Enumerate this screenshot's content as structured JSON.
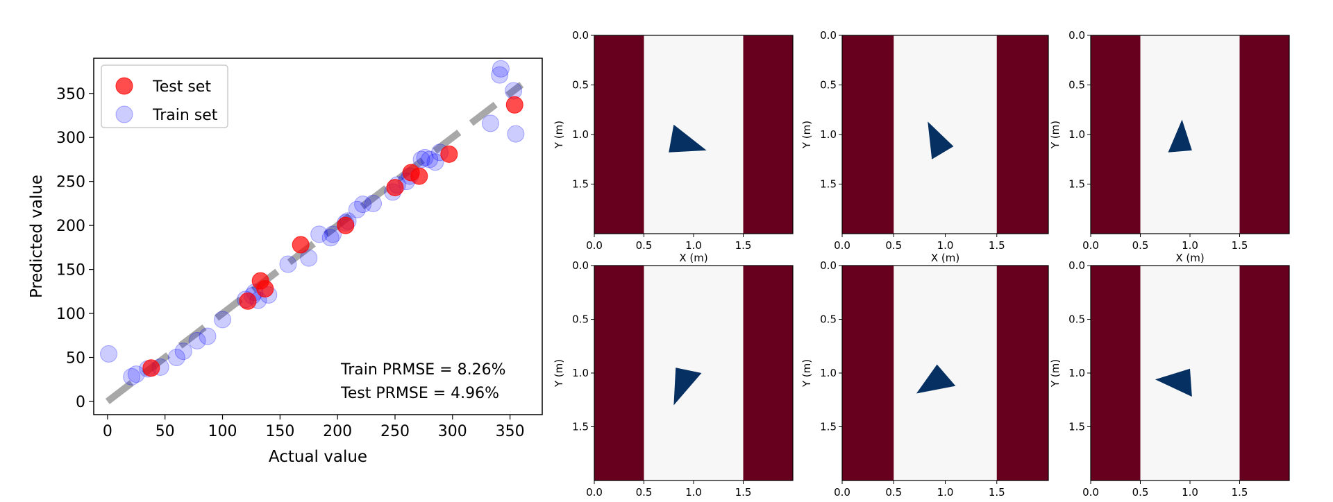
{
  "chart_data": [
    {
      "type": "scatter",
      "xlabel": "Actual value",
      "ylabel": "Predicted value",
      "xlim": [
        -12,
        378
      ],
      "ylim": [
        -15,
        390
      ],
      "xticks": [
        0,
        50,
        100,
        150,
        200,
        250,
        300,
        350
      ],
      "yticks": [
        0,
        50,
        100,
        150,
        200,
        250,
        300,
        350
      ],
      "legend_placement": "top-left",
      "grid": false,
      "reference_line": {
        "from": [
          0,
          0
        ],
        "to": [
          360,
          360
        ],
        "style": "dashed",
        "color": "#999999"
      },
      "annotations": [
        "Train PRMSE = 8.26%",
        "Test PRMSE = 4.96%"
      ],
      "series": [
        {
          "name": "Test set",
          "color": "#ff0000",
          "alpha": 0.7,
          "points": [
            [
              38,
              38
            ],
            [
              122,
              114
            ],
            [
              133,
              137
            ],
            [
              137,
              128
            ],
            [
              168,
              178
            ],
            [
              207,
              200
            ],
            [
              250,
              243
            ],
            [
              264,
              260
            ],
            [
              271,
              256
            ],
            [
              297,
              281
            ],
            [
              354,
              337
            ]
          ]
        },
        {
          "name": "Train set",
          "color": "#0000ff",
          "alpha": 0.2,
          "points": [
            [
              1,
              54
            ],
            [
              21,
              28
            ],
            [
              25,
              31
            ],
            [
              35,
              37
            ],
            [
              46,
              39
            ],
            [
              60,
              50
            ],
            [
              66,
              57
            ],
            [
              78,
              69
            ],
            [
              87,
              74
            ],
            [
              100,
              93
            ],
            [
              120,
              116
            ],
            [
              126,
              120
            ],
            [
              128,
              124
            ],
            [
              131,
              115
            ],
            [
              140,
              121
            ],
            [
              157,
              156
            ],
            [
              175,
              163
            ],
            [
              184,
              190
            ],
            [
              194,
              186
            ],
            [
              196,
              190
            ],
            [
              207,
              203
            ],
            [
              209,
              205
            ],
            [
              217,
              218
            ],
            [
              222,
              224
            ],
            [
              231,
              225
            ],
            [
              248,
              238
            ],
            [
              252,
              246
            ],
            [
              260,
              250
            ],
            [
              263,
              256
            ],
            [
              273,
              275
            ],
            [
              276,
              277
            ],
            [
              280,
              275
            ],
            [
              285,
              272
            ],
            [
              289,
              283
            ],
            [
              333,
              316
            ],
            [
              341,
              371
            ],
            [
              342,
              378
            ],
            [
              353,
              353
            ],
            [
              355,
              304
            ]
          ]
        }
      ]
    },
    {
      "type": "heatmap",
      "panels": 6,
      "xlabel": "X (m)",
      "ylabel": "Y (m)",
      "xlim": [
        0,
        2
      ],
      "ylim": [
        2,
        0
      ],
      "xticks": [
        "0.0",
        "0.5",
        "1.0",
        "1.5"
      ],
      "yticks": [
        "0.0",
        "0.5",
        "1.0",
        "1.5"
      ],
      "colors": {
        "wall": "#67001f",
        "free": "#f7f7f7",
        "object": "#053061"
      },
      "walls_x": [
        [
          0,
          0.5
        ],
        [
          1.5,
          2
        ]
      ],
      "triangles": [
        [
          [
            0.8,
            0.9
          ],
          [
            0.75,
            1.18
          ],
          [
            1.13,
            1.16
          ]
        ],
        [
          [
            0.83,
            0.87
          ],
          [
            0.87,
            1.25
          ],
          [
            1.08,
            1.12
          ]
        ],
        [
          [
            0.92,
            0.85
          ],
          [
            0.78,
            1.18
          ],
          [
            1.02,
            1.16
          ]
        ],
        [
          [
            0.82,
            0.95
          ],
          [
            0.8,
            1.3
          ],
          [
            1.08,
            1.0
          ]
        ],
        [
          [
            0.92,
            0.92
          ],
          [
            0.72,
            1.19
          ],
          [
            1.1,
            1.12
          ]
        ],
        [
          [
            0.65,
            1.06
          ],
          [
            1.0,
            0.96
          ],
          [
            1.02,
            1.22
          ]
        ]
      ]
    }
  ]
}
